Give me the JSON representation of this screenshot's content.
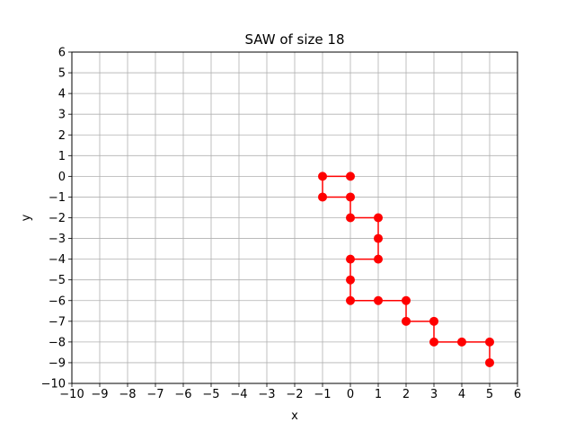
{
  "chart_data": {
    "type": "line",
    "title": "SAW of size 18",
    "xlabel": "x",
    "ylabel": "y",
    "xlim": [
      -10,
      6
    ],
    "ylim": [
      -10,
      6
    ],
    "xticks": [
      -10,
      -9,
      -8,
      -7,
      -6,
      -5,
      -4,
      -3,
      -2,
      -1,
      0,
      1,
      2,
      3,
      4,
      5,
      6
    ],
    "yticks": [
      -10,
      -9,
      -8,
      -7,
      -6,
      -5,
      -4,
      -3,
      -2,
      -1,
      0,
      1,
      2,
      3,
      4,
      5,
      6
    ],
    "grid": true,
    "series": [
      {
        "name": "walk",
        "color": "#ff0000",
        "marker": "circle",
        "points": [
          [
            0,
            0
          ],
          [
            -1,
            0
          ],
          [
            -1,
            -1
          ],
          [
            0,
            -1
          ],
          [
            0,
            -2
          ],
          [
            1,
            -2
          ],
          [
            1,
            -3
          ],
          [
            1,
            -4
          ],
          [
            0,
            -4
          ],
          [
            0,
            -5
          ],
          [
            0,
            -6
          ],
          [
            1,
            -6
          ],
          [
            2,
            -6
          ],
          [
            2,
            -7
          ],
          [
            3,
            -7
          ],
          [
            3,
            -8
          ],
          [
            4,
            -8
          ],
          [
            5,
            -8
          ],
          [
            5,
            -9
          ]
        ]
      }
    ]
  }
}
